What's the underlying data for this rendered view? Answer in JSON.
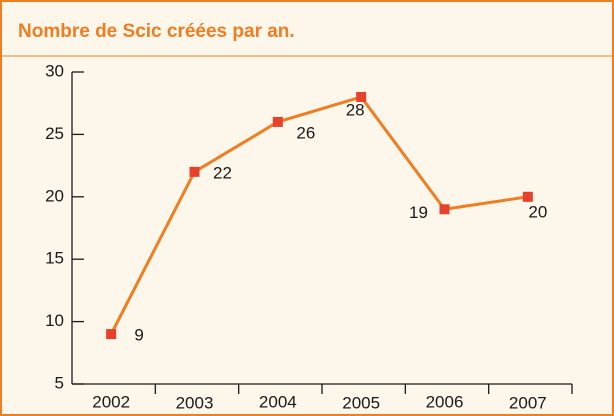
{
  "chart_data": {
    "type": "line",
    "title": "Nombre de Scic créées par an.",
    "categories": [
      "2002",
      "2003",
      "2004",
      "2005",
      "2006",
      "2007"
    ],
    "values": [
      9,
      22,
      26,
      28,
      19,
      20
    ],
    "color": "#ef7d22",
    "marker_color": "#e8412b",
    "ylim": [
      5,
      30
    ],
    "yticks": [
      5,
      10,
      15,
      20,
      25,
      30
    ]
  }
}
